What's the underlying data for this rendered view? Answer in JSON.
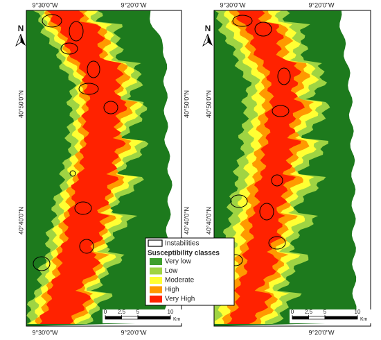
{
  "panels": [
    {
      "top_labels": [
        "9°30'0\"W",
        "9°20'0\"W"
      ],
      "bottom_labels": [
        "9°30'0\"W",
        "9°20'0\"W"
      ],
      "left_labels": [
        "40°50'0\"N",
        "40°40'0\"N"
      ],
      "right_labels": [
        "40°50'0\"N",
        "40°40'0\"N"
      ],
      "north": "N",
      "scale": {
        "ticks": [
          0,
          {
            "value": 2.5,
            "label": "2,5"
          },
          5,
          10
        ],
        "unit": "Km"
      }
    },
    {
      "top_labels": [
        "9°30'0\"W",
        "9°20'0\"W"
      ],
      "bottom_labels": [
        "9°20'0\"W"
      ],
      "left_labels": [
        "40°50'0\"N",
        "40°40'0\"N"
      ],
      "right_labels": [],
      "north": "N",
      "scale": {
        "ticks": [
          0,
          {
            "value": 2.5,
            "label": "2,5"
          },
          5,
          10
        ],
        "unit": "Km"
      }
    }
  ],
  "legend": {
    "instabilities": "Instabilities",
    "title": "Susceptibility classes",
    "classes": [
      {
        "label": "Very low",
        "color": "#3f9f2c"
      },
      {
        "label": "Low",
        "color": "#9fd443"
      },
      {
        "label": "Moderate",
        "color": "#ffff33"
      },
      {
        "label": "High",
        "color": "#ff9900"
      },
      {
        "label": "Very High",
        "color": "#ff2200"
      }
    ]
  }
}
